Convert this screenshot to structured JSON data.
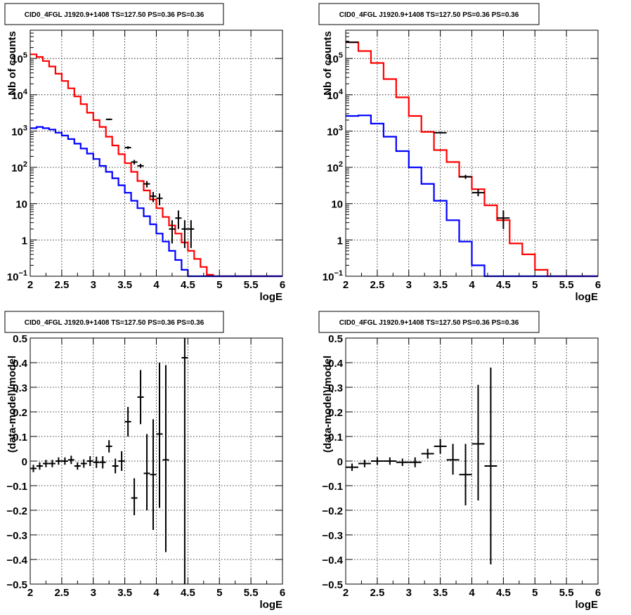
{
  "chart_data": [
    {
      "type": "line",
      "panel": "top-left",
      "title": "CID0_4FGL J1920.9+1408 TS=127.50 PS=0.36 PS=0.36",
      "xlabel": "logE",
      "ylabel": "Nb of counts",
      "xlim": [
        2,
        6
      ],
      "ylim": [
        0.1,
        600000
      ],
      "y_scale": "log",
      "grid": true,
      "x_ticks": [
        "2",
        "2.5",
        "3",
        "3.5",
        "4",
        "4.5",
        "5",
        "5.5",
        "6"
      ],
      "y_ticks": [
        {
          "value": 0.1,
          "label": "10",
          "sup": "−1"
        },
        {
          "value": 1,
          "label": "1",
          "sup": ""
        },
        {
          "value": 10,
          "label": "10",
          "sup": ""
        },
        {
          "value": 100,
          "label": "10",
          "sup": "2"
        },
        {
          "value": 1000,
          "label": "10",
          "sup": "3"
        },
        {
          "value": 10000,
          "label": "10",
          "sup": "4"
        },
        {
          "value": 100000,
          "label": "10",
          "sup": "5"
        }
      ],
      "bin_edges": [
        2.0,
        2.1,
        2.2,
        2.3,
        2.4,
        2.5,
        2.6,
        2.7,
        2.8,
        2.9,
        3.0,
        3.1,
        3.2,
        3.3,
        3.4,
        3.5,
        3.6,
        3.7,
        3.8,
        3.9,
        4.0,
        4.1,
        4.2,
        4.3,
        4.4,
        4.5,
        4.6,
        4.7,
        4.8,
        4.9,
        5.0,
        5.1,
        5.2,
        5.3,
        5.4,
        5.5,
        5.6,
        5.7,
        5.8,
        5.9,
        6.0
      ],
      "series": [
        {
          "kind": "step",
          "color": "#ff0000",
          "values": [
            130000,
            110000,
            85000,
            60000,
            38000,
            24000,
            15000,
            9000,
            5500,
            3200,
            2000,
            1300,
            700,
            400,
            230,
            130,
            75,
            42,
            23,
            13,
            7.5,
            4.3,
            2.5,
            1.5,
            0.85,
            0.5,
            0.3,
            0.18,
            0.11,
            0.1,
            0.1,
            0.1,
            0.1,
            0.1,
            0.1,
            0.1,
            0.1,
            0.1,
            0.1,
            0.1
          ]
        },
        {
          "kind": "step",
          "color": "#0000ff",
          "values": [
            1200,
            1300,
            1200,
            1100,
            900,
            750,
            600,
            450,
            330,
            240,
            170,
            110,
            75,
            50,
            32,
            20,
            12,
            7.5,
            4.5,
            2.7,
            1.5,
            0.9,
            0.5,
            0.28,
            0.15,
            0.1,
            0.1,
            0.1,
            0.1,
            0.1,
            0.1,
            0.1,
            0.1,
            0.1,
            0.1,
            0.1,
            0.1,
            0.1,
            0.1,
            0.1
          ]
        }
      ],
      "points": [
        {
          "x": 3.25,
          "y": 2100,
          "xerr": 0.05,
          "ylo": 2000,
          "yhi": 2200
        },
        {
          "x": 3.55,
          "y": 350,
          "xerr": 0.05,
          "ylo": 320,
          "yhi": 380
        },
        {
          "x": 3.65,
          "y": 140,
          "xerr": 0.05,
          "ylo": 120,
          "yhi": 160
        },
        {
          "x": 3.75,
          "y": 110,
          "xerr": 0.05,
          "ylo": 95,
          "yhi": 125
        },
        {
          "x": 3.85,
          "y": 35,
          "xerr": 0.05,
          "ylo": 28,
          "yhi": 42
        },
        {
          "x": 3.95,
          "y": 16,
          "xerr": 0.05,
          "ylo": 11,
          "yhi": 21
        },
        {
          "x": 4.05,
          "y": 14,
          "xerr": 0.05,
          "ylo": 9,
          "yhi": 19
        },
        {
          "x": 4.25,
          "y": 2,
          "xerr": 0.05,
          "ylo": 0.8,
          "yhi": 3.5
        },
        {
          "x": 4.35,
          "y": 4,
          "xerr": 0.05,
          "ylo": 2,
          "yhi": 6.5
        },
        {
          "x": 4.45,
          "y": 2,
          "xerr": 0.05,
          "ylo": 0.6,
          "yhi": 3.5
        },
        {
          "x": 4.55,
          "y": 2,
          "xerr": 0.05,
          "ylo": 0.6,
          "yhi": 3.5
        }
      ]
    },
    {
      "type": "line",
      "panel": "top-right",
      "title": "CID0_4FGL J1920.9+1408 TS=127.50 PS=0.36 PS=0.36",
      "xlabel": "logE",
      "ylabel": "Nb of counts",
      "xlim": [
        2,
        6
      ],
      "ylim": [
        0.1,
        600000
      ],
      "y_scale": "log",
      "grid": true,
      "x_ticks": [
        "2",
        "2.5",
        "3",
        "3.5",
        "4",
        "4.5",
        "5",
        "5.5",
        "6"
      ],
      "y_ticks": [
        {
          "value": 0.1,
          "label": "10",
          "sup": "−1"
        },
        {
          "value": 1,
          "label": "1",
          "sup": ""
        },
        {
          "value": 10,
          "label": "10",
          "sup": ""
        },
        {
          "value": 100,
          "label": "10",
          "sup": "2"
        },
        {
          "value": 1000,
          "label": "10",
          "sup": "3"
        },
        {
          "value": 10000,
          "label": "10",
          "sup": "4"
        },
        {
          "value": 100000,
          "label": "10",
          "sup": "5"
        }
      ],
      "bin_edges": [
        2.0,
        2.2,
        2.4,
        2.6,
        2.8,
        3.0,
        3.2,
        3.4,
        3.6,
        3.8,
        4.0,
        4.2,
        4.4,
        4.6,
        4.8,
        5.0,
        5.2,
        5.4,
        5.6,
        5.8,
        6.0
      ],
      "series": [
        {
          "kind": "step",
          "color": "#ff0000",
          "values": [
            280000,
            160000,
            75000,
            27000,
            8500,
            2600,
            950,
            300,
            140,
            55,
            25,
            9,
            3.5,
            0.8,
            0.4,
            0.15,
            0.1,
            0.1,
            0.1,
            0.1
          ]
        },
        {
          "kind": "step",
          "color": "#0000ff",
          "values": [
            2600,
            2700,
            1600,
            700,
            280,
            100,
            35,
            12,
            3.5,
            0.9,
            0.2,
            0.1,
            0.1,
            0.1,
            0.1,
            0.1,
            0.1,
            0.1,
            0.1,
            0.1
          ]
        }
      ],
      "points": [
        {
          "x": 2.1,
          "y": 280000,
          "xerr": 0.1,
          "ylo": 275000,
          "yhi": 285000
        },
        {
          "x": 3.5,
          "y": 900,
          "xerr": 0.1,
          "ylo": 850,
          "yhi": 950
        },
        {
          "x": 3.9,
          "y": 55,
          "xerr": 0.1,
          "ylo": 48,
          "yhi": 62
        },
        {
          "x": 4.1,
          "y": 20,
          "xerr": 0.1,
          "ylo": 16,
          "yhi": 25
        },
        {
          "x": 4.5,
          "y": 4,
          "xerr": 0.1,
          "ylo": 2,
          "yhi": 6.5
        }
      ]
    },
    {
      "type": "scatter",
      "panel": "bottom-left",
      "title": "CID0_4FGL J1920.9+1408 TS=127.50 PS=0.36 PS=0.36",
      "xlabel": "logE",
      "ylabel": "(data-model)/model",
      "xlim": [
        2,
        6
      ],
      "ylim": [
        -0.5,
        0.5
      ],
      "y_scale": "linear",
      "grid": true,
      "x_ticks": [
        "2",
        "2.5",
        "3",
        "3.5",
        "4",
        "4.5",
        "5",
        "5.5",
        "6"
      ],
      "y_ticks": [
        {
          "value": -0.5,
          "label": "−0.5",
          "sup": ""
        },
        {
          "value": -0.4,
          "label": "−0.4",
          "sup": ""
        },
        {
          "value": -0.3,
          "label": "−0.3",
          "sup": ""
        },
        {
          "value": -0.2,
          "label": "−0.2",
          "sup": ""
        },
        {
          "value": -0.1,
          "label": "−0.1",
          "sup": ""
        },
        {
          "value": 0,
          "label": "0",
          "sup": ""
        },
        {
          "value": 0.1,
          "label": "0.1",
          "sup": ""
        },
        {
          "value": 0.2,
          "label": "0.2",
          "sup": ""
        },
        {
          "value": 0.3,
          "label": "0.3",
          "sup": ""
        },
        {
          "value": 0.4,
          "label": "0.4",
          "sup": ""
        },
        {
          "value": 0.5,
          "label": "0.5",
          "sup": ""
        }
      ],
      "points": [
        {
          "x": 2.05,
          "y": -0.03,
          "xerr": 0.05,
          "ylo": -0.045,
          "yhi": -0.015
        },
        {
          "x": 2.15,
          "y": -0.02,
          "xerr": 0.05,
          "ylo": -0.035,
          "yhi": -0.005
        },
        {
          "x": 2.25,
          "y": -0.01,
          "xerr": 0.05,
          "ylo": -0.025,
          "yhi": 0.005
        },
        {
          "x": 2.35,
          "y": -0.01,
          "xerr": 0.05,
          "ylo": -0.025,
          "yhi": 0.005
        },
        {
          "x": 2.45,
          "y": 0.0,
          "xerr": 0.05,
          "ylo": -0.015,
          "yhi": 0.015
        },
        {
          "x": 2.55,
          "y": 0.0,
          "xerr": 0.05,
          "ylo": -0.015,
          "yhi": 0.015
        },
        {
          "x": 2.65,
          "y": 0.005,
          "xerr": 0.05,
          "ylo": -0.012,
          "yhi": 0.022
        },
        {
          "x": 2.75,
          "y": -0.02,
          "xerr": 0.05,
          "ylo": -0.035,
          "yhi": -0.005
        },
        {
          "x": 2.85,
          "y": -0.01,
          "xerr": 0.05,
          "ylo": -0.027,
          "yhi": 0.007
        },
        {
          "x": 2.95,
          "y": 0.0,
          "xerr": 0.05,
          "ylo": -0.02,
          "yhi": 0.02
        },
        {
          "x": 3.05,
          "y": -0.005,
          "xerr": 0.05,
          "ylo": -0.028,
          "yhi": 0.018
        },
        {
          "x": 3.15,
          "y": -0.005,
          "xerr": 0.05,
          "ylo": -0.03,
          "yhi": 0.02
        },
        {
          "x": 3.25,
          "y": 0.06,
          "xerr": 0.05,
          "ylo": 0.035,
          "yhi": 0.085
        },
        {
          "x": 3.35,
          "y": -0.02,
          "xerr": 0.05,
          "ylo": -0.05,
          "yhi": 0.01
        },
        {
          "x": 3.45,
          "y": 0.0,
          "xerr": 0.05,
          "ylo": -0.04,
          "yhi": 0.04
        },
        {
          "x": 3.55,
          "y": 0.16,
          "xerr": 0.05,
          "ylo": 0.1,
          "yhi": 0.22
        },
        {
          "x": 3.65,
          "y": -0.15,
          "xerr": 0.05,
          "ylo": -0.22,
          "yhi": -0.07
        },
        {
          "x": 3.75,
          "y": 0.26,
          "xerr": 0.05,
          "ylo": 0.15,
          "yhi": 0.37
        },
        {
          "x": 3.85,
          "y": -0.05,
          "xerr": 0.05,
          "ylo": -0.2,
          "yhi": 0.11
        },
        {
          "x": 3.95,
          "y": -0.055,
          "xerr": 0.05,
          "ylo": -0.28,
          "yhi": 0.17
        },
        {
          "x": 4.05,
          "y": 0.11,
          "xerr": 0.05,
          "ylo": -0.19,
          "yhi": 0.4
        },
        {
          "x": 4.15,
          "y": 0.005,
          "xerr": 0.05,
          "ylo": -0.37,
          "yhi": 0.39
        },
        {
          "x": 4.45,
          "y": 0.42,
          "xerr": 0.05,
          "ylo": -0.5,
          "yhi": 0.5
        }
      ]
    },
    {
      "type": "scatter",
      "panel": "bottom-right",
      "title": "CID0_4FGL J1920.9+1408 TS=127.50 PS=0.36 PS=0.36",
      "xlabel": "logE",
      "ylabel": "(data-model)/model",
      "xlim": [
        2,
        6
      ],
      "ylim": [
        -0.5,
        0.5
      ],
      "y_scale": "linear",
      "grid": true,
      "x_ticks": [
        "2",
        "2.5",
        "3",
        "3.5",
        "4",
        "4.5",
        "5",
        "5.5",
        "6"
      ],
      "y_ticks": [
        {
          "value": -0.5,
          "label": "−0.5",
          "sup": ""
        },
        {
          "value": -0.4,
          "label": "−0.4",
          "sup": ""
        },
        {
          "value": -0.3,
          "label": "−0.3",
          "sup": ""
        },
        {
          "value": -0.2,
          "label": "−0.2",
          "sup": ""
        },
        {
          "value": -0.1,
          "label": "−0.1",
          "sup": ""
        },
        {
          "value": 0,
          "label": "0",
          "sup": ""
        },
        {
          "value": 0.1,
          "label": "0.1",
          "sup": ""
        },
        {
          "value": 0.2,
          "label": "0.2",
          "sup": ""
        },
        {
          "value": 0.3,
          "label": "0.3",
          "sup": ""
        },
        {
          "value": 0.4,
          "label": "0.4",
          "sup": ""
        },
        {
          "value": 0.5,
          "label": "0.5",
          "sup": ""
        }
      ],
      "points": [
        {
          "x": 2.1,
          "y": -0.025,
          "xerr": 0.1,
          "ylo": -0.04,
          "yhi": -0.01
        },
        {
          "x": 2.3,
          "y": -0.01,
          "xerr": 0.1,
          "ylo": -0.025,
          "yhi": 0.005
        },
        {
          "x": 2.5,
          "y": 0.0,
          "xerr": 0.1,
          "ylo": -0.015,
          "yhi": 0.015
        },
        {
          "x": 2.7,
          "y": 0.0,
          "xerr": 0.1,
          "ylo": -0.015,
          "yhi": 0.015
        },
        {
          "x": 2.9,
          "y": -0.005,
          "xerr": 0.1,
          "ylo": -0.02,
          "yhi": 0.01
        },
        {
          "x": 3.1,
          "y": -0.005,
          "xerr": 0.1,
          "ylo": -0.025,
          "yhi": 0.015
        },
        {
          "x": 3.3,
          "y": 0.03,
          "xerr": 0.1,
          "ylo": 0.01,
          "yhi": 0.05
        },
        {
          "x": 3.5,
          "y": 0.06,
          "xerr": 0.1,
          "ylo": 0.03,
          "yhi": 0.09
        },
        {
          "x": 3.7,
          "y": 0.005,
          "xerr": 0.1,
          "ylo": -0.055,
          "yhi": 0.07
        },
        {
          "x": 3.9,
          "y": -0.055,
          "xerr": 0.1,
          "ylo": -0.18,
          "yhi": 0.07
        },
        {
          "x": 4.1,
          "y": 0.07,
          "xerr": 0.1,
          "ylo": -0.16,
          "yhi": 0.31
        },
        {
          "x": 4.3,
          "y": -0.02,
          "xerr": 0.1,
          "ylo": -0.42,
          "yhi": 0.38
        }
      ]
    }
  ]
}
